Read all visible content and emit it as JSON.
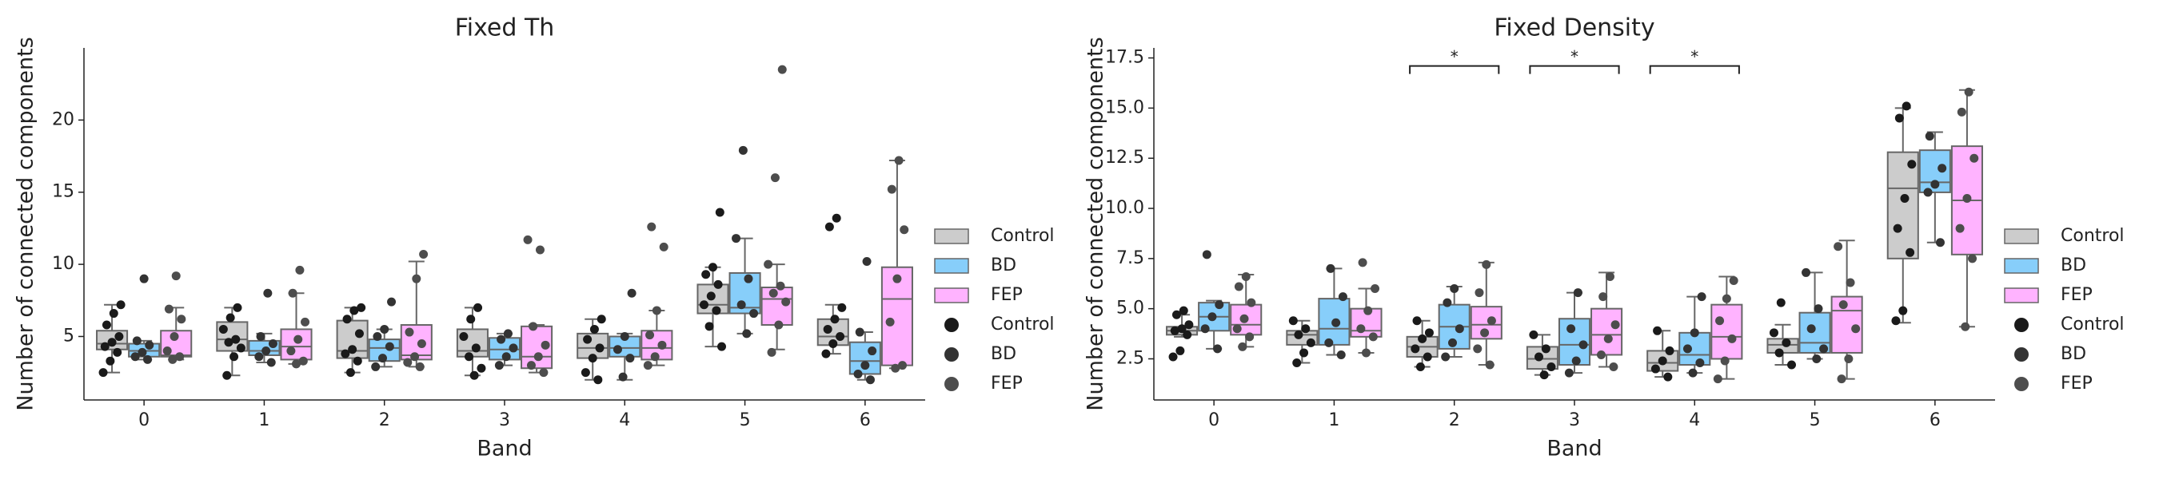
{
  "chart_data": [
    {
      "type": "box",
      "title": "Fixed Th",
      "xlabel": "Band",
      "ylabel": "Number of connected components",
      "categories": [
        "0",
        "1",
        "2",
        "3",
        "4",
        "5",
        "6"
      ],
      "ylim": [
        0.6,
        25
      ],
      "yticks": [
        5,
        10,
        15,
        20
      ],
      "legend": "outside right",
      "series": [
        {
          "name": "Control",
          "color": "#cccccc",
          "point_color": "#1a1a1a",
          "boxes": [
            {
              "whislo": 2.5,
              "q1": 4.1,
              "med": 4.5,
              "q3": 5.4,
              "whishi": 7.2
            },
            {
              "whislo": 2.3,
              "q1": 4.0,
              "med": 4.8,
              "q3": 6.0,
              "whishi": 7.0
            },
            {
              "whislo": 2.5,
              "q1": 3.5,
              "med": 4.0,
              "q3": 6.1,
              "whishi": 7.0
            },
            {
              "whislo": 2.3,
              "q1": 3.6,
              "med": 4.0,
              "q3": 5.5,
              "whishi": 7.0
            },
            {
              "whislo": 2.0,
              "q1": 3.5,
              "med": 4.2,
              "q3": 5.2,
              "whishi": 6.2
            },
            {
              "whislo": 4.3,
              "q1": 6.6,
              "med": 7.2,
              "q3": 8.6,
              "whishi": 9.8
            },
            {
              "whislo": 3.8,
              "q1": 4.4,
              "med": 5.0,
              "q3": 6.2,
              "whishi": 7.2
            }
          ],
          "points": [
            [
              2.5,
              3.3,
              3.9,
              4.3,
              4.6,
              5.0,
              5.8,
              6.6,
              7.2
            ],
            [
              2.3,
              3.6,
              4.2,
              4.6,
              4.8,
              5.5,
              6.3,
              7.0
            ],
            [
              2.5,
              3.3,
              3.8,
              4.1,
              5.2,
              6.2,
              6.8,
              7.0
            ],
            [
              2.3,
              2.8,
              3.6,
              4.2,
              5.0,
              6.2,
              7.0
            ],
            [
              2.0,
              2.5,
              3.5,
              4.2,
              4.8,
              5.5,
              6.2
            ],
            [
              4.3,
              5.7,
              6.8,
              7.2,
              7.8,
              8.6,
              9.3,
              9.8,
              13.6
            ],
            [
              3.8,
              4.5,
              5.0,
              5.5,
              6.2,
              7.0,
              12.6,
              13.2
            ]
          ]
        },
        {
          "name": "BD",
          "color": "#87cefa",
          "point_color": "#333333",
          "boxes": [
            {
              "whislo": 3.4,
              "q1": 3.6,
              "med": 4.0,
              "q3": 4.5,
              "whishi": 4.7
            },
            {
              "whislo": 3.2,
              "q1": 3.7,
              "med": 4.0,
              "q3": 4.7,
              "whishi": 5.2
            },
            {
              "whislo": 2.9,
              "q1": 3.3,
              "med": 4.2,
              "q3": 4.8,
              "whishi": 5.5
            },
            {
              "whislo": 3.0,
              "q1": 3.4,
              "med": 4.1,
              "q3": 4.9,
              "whishi": 5.2
            },
            {
              "whislo": 2.0,
              "q1": 3.6,
              "med": 4.2,
              "q3": 5.0,
              "whishi": 5.2
            },
            {
              "whislo": 5.2,
              "q1": 6.6,
              "med": 7.0,
              "q3": 9.4,
              "whishi": 11.8
            },
            {
              "whislo": 2.0,
              "q1": 2.4,
              "med": 3.3,
              "q3": 4.6,
              "whishi": 5.3
            }
          ],
          "points": [
            [
              3.4,
              3.6,
              3.9,
              4.4,
              4.7,
              9.0
            ],
            [
              3.2,
              3.6,
              4.0,
              4.5,
              5.0,
              8.0
            ],
            [
              2.9,
              3.5,
              4.3,
              5.0,
              5.5,
              7.4
            ],
            [
              3.0,
              3.6,
              4.2,
              4.8,
              5.2
            ],
            [
              2.2,
              3.5,
              4.1,
              5.0,
              8.0
            ],
            [
              5.2,
              6.6,
              7.2,
              9.0,
              11.8,
              17.9
            ],
            [
              2.0,
              2.4,
              3.0,
              4.0,
              5.3,
              10.2
            ]
          ]
        },
        {
          "name": "FEP",
          "color": "#ffb3ff",
          "point_color": "#4d4d4d",
          "boxes": [
            {
              "whislo": 3.4,
              "q1": 3.6,
              "med": 3.7,
              "q3": 5.4,
              "whishi": 7.0
            },
            {
              "whislo": 3.1,
              "q1": 3.4,
              "med": 4.3,
              "q3": 5.5,
              "whishi": 8.0
            },
            {
              "whislo": 2.9,
              "q1": 3.4,
              "med": 3.7,
              "q3": 5.8,
              "whishi": 10.2
            },
            {
              "whislo": 2.5,
              "q1": 2.8,
              "med": 3.6,
              "q3": 5.7,
              "whishi": 5.8
            },
            {
              "whislo": 3.0,
              "q1": 3.4,
              "med": 4.2,
              "q3": 5.4,
              "whishi": 6.8
            },
            {
              "whislo": 4.1,
              "q1": 5.8,
              "med": 7.6,
              "q3": 8.4,
              "whishi": 10.0
            },
            {
              "whislo": 2.8,
              "q1": 3.0,
              "med": 7.6,
              "q3": 9.8,
              "whishi": 17.2
            }
          ],
          "points": [
            [
              3.4,
              3.6,
              4.0,
              5.0,
              6.2,
              6.9,
              9.2
            ],
            [
              3.1,
              3.3,
              4.0,
              4.8,
              6.0,
              8.0,
              9.6
            ],
            [
              2.9,
              3.2,
              3.6,
              4.5,
              5.3,
              9.0,
              10.7
            ],
            [
              2.5,
              3.0,
              3.6,
              4.4,
              5.7,
              11.0,
              11.7
            ],
            [
              3.0,
              3.6,
              4.4,
              5.1,
              6.8,
              11.2,
              12.6
            ],
            [
              3.9,
              5.8,
              7.4,
              8.0,
              8.5,
              10.0,
              16.0,
              23.5
            ],
            [
              2.8,
              3.0,
              6.0,
              9.0,
              12.4,
              15.2,
              17.2
            ]
          ]
        }
      ]
    },
    {
      "type": "box",
      "title": "Fixed Density",
      "xlabel": "Band",
      "ylabel": "Number of connected components",
      "categories": [
        "0",
        "1",
        "2",
        "3",
        "4",
        "5",
        "6"
      ],
      "ylim": [
        0.45,
        18
      ],
      "yticks": [
        2.5,
        {
          "value": 5,
          "label": "5.0"
        },
        7.5,
        {
          "value": 10,
          "label": "10.0"
        },
        12.5,
        {
          "value": 15,
          "label": "15.0"
        },
        17.5
      ],
      "legend": "outside right",
      "annotations": [
        {
          "text": "*",
          "x": 2,
          "y": 17.1
        },
        {
          "text": "*",
          "x": 3,
          "y": 17.1
        },
        {
          "text": "*",
          "x": 4,
          "y": 17.1
        }
      ],
      "series": [
        {
          "name": "Control",
          "color": "#cccccc",
          "point_color": "#1a1a1a",
          "boxes": [
            {
              "whislo": 3.6,
              "q1": 3.7,
              "med": 3.9,
              "q3": 4.1,
              "whishi": 4.7
            },
            {
              "whislo": 2.3,
              "q1": 3.2,
              "med": 3.7,
              "q3": 3.9,
              "whishi": 4.4
            },
            {
              "whislo": 2.1,
              "q1": 2.6,
              "med": 3.1,
              "q3": 3.6,
              "whishi": 4.4
            },
            {
              "whislo": 1.7,
              "q1": 2.0,
              "med": 2.5,
              "q3": 3.1,
              "whishi": 3.7
            },
            {
              "whislo": 1.6,
              "q1": 1.9,
              "med": 2.3,
              "q3": 2.9,
              "whishi": 3.9
            },
            {
              "whislo": 2.2,
              "q1": 2.8,
              "med": 3.2,
              "q3": 3.5,
              "whishi": 4.2
            },
            {
              "whislo": 4.3,
              "q1": 7.5,
              "med": 11.0,
              "q3": 12.8,
              "whishi": 15.0
            }
          ],
          "points": [
            [
              2.6,
              2.9,
              3.7,
              3.9,
              4.0,
              4.2,
              4.7,
              4.9
            ],
            [
              2.3,
              2.8,
              3.3,
              3.7,
              4.0,
              4.4
            ],
            [
              2.1,
              2.6,
              3.0,
              3.5,
              3.8,
              4.4
            ],
            [
              1.7,
              2.1,
              2.6,
              3.0,
              3.7
            ],
            [
              1.6,
              2.0,
              2.4,
              2.9,
              3.9
            ],
            [
              2.2,
              2.8,
              3.3,
              3.8,
              5.3
            ],
            [
              4.4,
              4.9,
              7.8,
              9.0,
              10.5,
              12.2,
              14.5,
              15.1
            ]
          ]
        },
        {
          "name": "BD",
          "color": "#87cefa",
          "point_color": "#333333",
          "boxes": [
            {
              "whislo": 3.0,
              "q1": 3.9,
              "med": 4.6,
              "q3": 5.3,
              "whishi": 5.4
            },
            {
              "whislo": 2.7,
              "q1": 3.2,
              "med": 4.0,
              "q3": 5.5,
              "whishi": 7.0
            },
            {
              "whislo": 2.6,
              "q1": 3.0,
              "med": 4.1,
              "q3": 5.2,
              "whishi": 6.1
            },
            {
              "whislo": 1.8,
              "q1": 2.2,
              "med": 3.2,
              "q3": 4.5,
              "whishi": 5.8
            },
            {
              "whislo": 1.8,
              "q1": 2.2,
              "med": 2.7,
              "q3": 3.8,
              "whishi": 5.6
            },
            {
              "whislo": 2.5,
              "q1": 2.8,
              "med": 3.3,
              "q3": 4.8,
              "whishi": 6.8
            },
            {
              "whislo": 8.3,
              "q1": 10.8,
              "med": 11.3,
              "q3": 12.9,
              "whishi": 13.8
            }
          ],
          "points": [
            [
              3.0,
              4.0,
              4.6,
              5.2,
              7.7
            ],
            [
              2.7,
              3.3,
              4.3,
              5.6,
              7.0
            ],
            [
              2.6,
              3.3,
              4.0,
              5.3,
              6.0
            ],
            [
              1.8,
              2.4,
              3.2,
              4.0,
              5.8
            ],
            [
              1.8,
              2.3,
              3.0,
              3.8,
              5.6
            ],
            [
              2.5,
              3.0,
              4.0,
              5.0,
              6.8
            ],
            [
              8.3,
              10.8,
              11.2,
              12.0,
              13.6
            ]
          ]
        },
        {
          "name": "FEP",
          "color": "#ffb3ff",
          "point_color": "#4d4d4d",
          "boxes": [
            {
              "whislo": 3.1,
              "q1": 3.7,
              "med": 4.2,
              "q3": 5.2,
              "whishi": 6.7
            },
            {
              "whislo": 2.8,
              "q1": 3.6,
              "med": 3.9,
              "q3": 5.0,
              "whishi": 6.0
            },
            {
              "whislo": 2.2,
              "q1": 3.5,
              "med": 4.2,
              "q3": 5.1,
              "whishi": 7.3
            },
            {
              "whislo": 2.1,
              "q1": 2.7,
              "med": 3.7,
              "q3": 5.0,
              "whishi": 6.8
            },
            {
              "whislo": 1.5,
              "q1": 2.5,
              "med": 3.6,
              "q3": 5.2,
              "whishi": 6.6
            },
            {
              "whislo": 1.5,
              "q1": 2.8,
              "med": 4.9,
              "q3": 5.6,
              "whishi": 8.4
            },
            {
              "whislo": 4.1,
              "q1": 7.7,
              "med": 10.4,
              "q3": 13.1,
              "whishi": 15.9
            }
          ],
          "points": [
            [
              3.1,
              3.6,
              4.0,
              4.5,
              5.3,
              6.1,
              6.6
            ],
            [
              2.8,
              3.6,
              4.0,
              4.9,
              6.0,
              7.3
            ],
            [
              2.2,
              3.0,
              3.8,
              4.4,
              5.8,
              7.2
            ],
            [
              2.1,
              2.7,
              3.5,
              4.2,
              5.6,
              6.6
            ],
            [
              1.5,
              2.4,
              3.5,
              4.4,
              5.5,
              6.4
            ],
            [
              1.5,
              2.5,
              4.0,
              5.2,
              6.3,
              8.1
            ],
            [
              4.1,
              7.5,
              9.0,
              10.5,
              12.5,
              14.8,
              15.8
            ]
          ]
        }
      ]
    }
  ]
}
